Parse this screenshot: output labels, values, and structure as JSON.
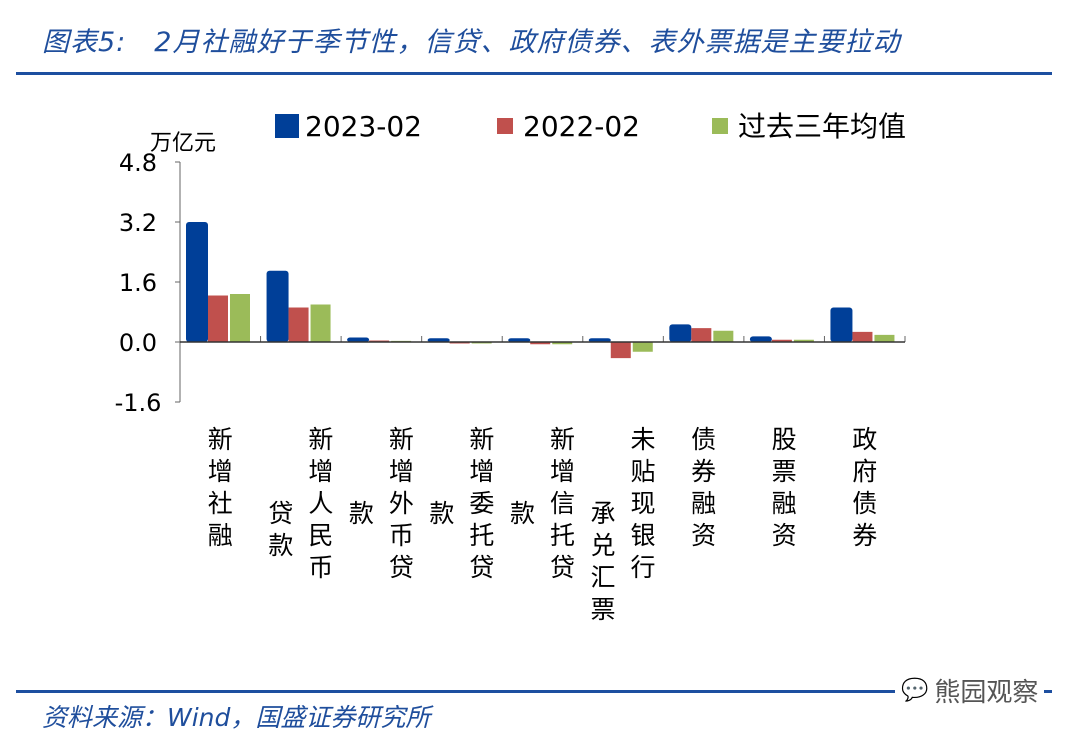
{
  "title": "图表5:　2月社融好于季节性，信贷、政府债券、表外票据是主要拉动",
  "source": "资料来源：Wind，国盛证券研究所",
  "watermark": "熊园观察",
  "chart_data": {
    "type": "bar",
    "ylabel": "万亿元",
    "ylim": [
      -1.6,
      4.8
    ],
    "yticks": [
      "4.8",
      "3.2",
      "1.6",
      "0.0",
      "-1.6"
    ],
    "ytick_values": [
      4.8,
      3.2,
      1.6,
      0,
      -1.6
    ],
    "legend_position": "top",
    "categories": [
      "新增社融",
      "新增人民币贷款",
      "新增外币贷款",
      "新增委托贷款",
      "新增信托贷款",
      "未贴现银行承兑汇票",
      "债券融资",
      "股票融资",
      "政府债券"
    ],
    "series": [
      {
        "name": "2023-02",
        "color": "#003f98",
        "values": [
          3.2,
          1.9,
          0.12,
          0.1,
          0.1,
          0.1,
          0.47,
          0.15,
          0.92
        ]
      },
      {
        "name": "2022-02",
        "color": "#c0504d",
        "values": [
          1.24,
          0.92,
          0.04,
          0.0,
          -0.06,
          -0.43,
          0.37,
          0.06,
          0.27
        ]
      },
      {
        "name": "过去三年均值",
        "color": "#9bbb59",
        "values": [
          1.28,
          1.0,
          0.03,
          0.0,
          -0.06,
          -0.26,
          0.3,
          0.06,
          0.19
        ]
      }
    ]
  }
}
